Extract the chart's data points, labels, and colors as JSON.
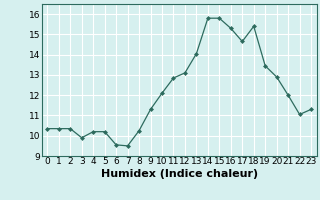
{
  "x": [
    0,
    1,
    2,
    3,
    4,
    5,
    6,
    7,
    8,
    9,
    10,
    11,
    12,
    13,
    14,
    15,
    16,
    17,
    18,
    19,
    20,
    21,
    22,
    23
  ],
  "y": [
    10.35,
    10.35,
    10.35,
    9.9,
    10.2,
    10.2,
    9.55,
    9.5,
    10.25,
    11.3,
    12.1,
    12.85,
    13.1,
    14.05,
    15.8,
    15.8,
    15.3,
    14.65,
    15.4,
    13.45,
    12.9,
    12.0,
    11.05,
    11.3
  ],
  "xlabel": "Humidex (Indice chaleur)",
  "ylim": [
    9,
    16.5
  ],
  "xlim": [
    -0.5,
    23.5
  ],
  "yticks": [
    9,
    10,
    11,
    12,
    13,
    14,
    15,
    16
  ],
  "xticks": [
    0,
    1,
    2,
    3,
    4,
    5,
    6,
    7,
    8,
    9,
    10,
    11,
    12,
    13,
    14,
    15,
    16,
    17,
    18,
    19,
    20,
    21,
    22,
    23
  ],
  "line_color": "#2d6b5e",
  "marker": "D",
  "marker_size": 2.0,
  "bg_color": "#d6f0ef",
  "grid_color": "#ffffff",
  "tick_label_fontsize": 6.5,
  "xlabel_fontsize": 8.0
}
